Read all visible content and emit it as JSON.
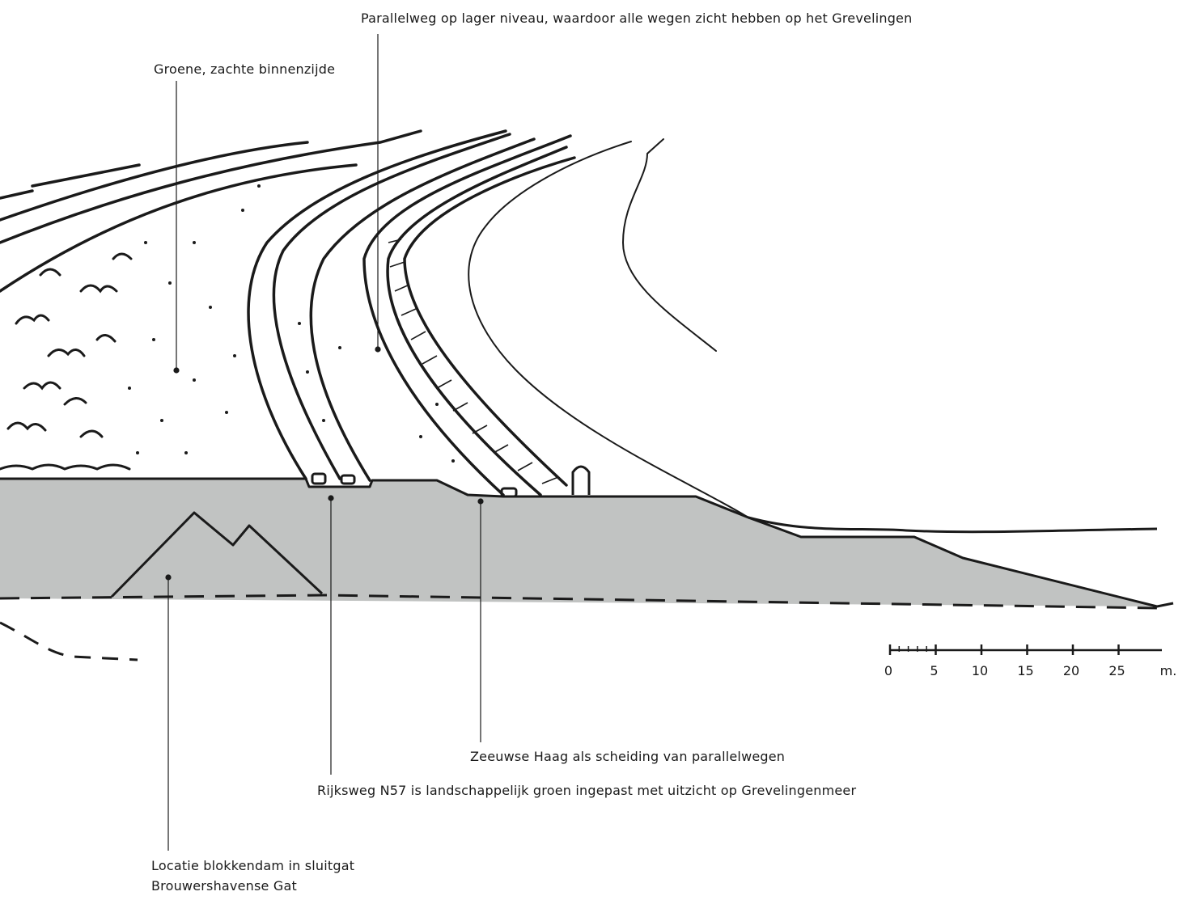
{
  "annotations": {
    "parallelweg": "Parallelweg op lager niveau, waardoor alle wegen zicht hebben op het Grevelingen",
    "binnenzijde": "Groene, zachte binnenzijde",
    "zeeuwse_haag": "Zeeuwse Haag als scheiding van parallelwegen",
    "rijksweg": "Rijksweg N57 is landschappelijk groen ingepast met uitzicht op Grevelingenmeer",
    "blokkendam_line1": "Locatie blokkendam in sluitgat",
    "blokkendam_line2": "Brouwershavense Gat"
  },
  "scale_bar": {
    "labels": [
      "0",
      "5",
      "10",
      "15",
      "20",
      "25"
    ],
    "unit": "m."
  },
  "colors": {
    "section_fill": "#c1c3c2",
    "ink": "#1a1a1a"
  }
}
